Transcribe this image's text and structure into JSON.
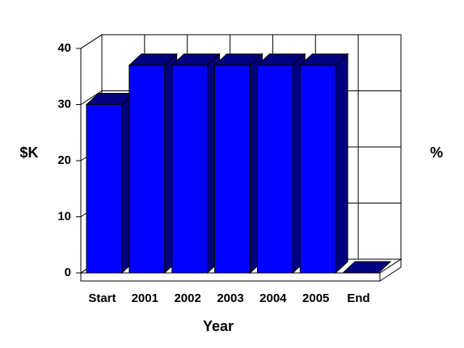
{
  "chart_data": {
    "type": "bar3d",
    "y_label": "$K",
    "y2_label": "%",
    "x_label": "Year",
    "categories": [
      "Start",
      "2001",
      "2002",
      "2003",
      "2004",
      "2005",
      "End"
    ],
    "values": [
      30,
      37,
      37,
      37,
      37,
      37,
      0
    ],
    "color": "#0000ff",
    "shade_color": "#000080",
    "ylim": [
      0,
      40
    ],
    "yticks": [
      0,
      10,
      20,
      30,
      40
    ],
    "grid": true
  }
}
